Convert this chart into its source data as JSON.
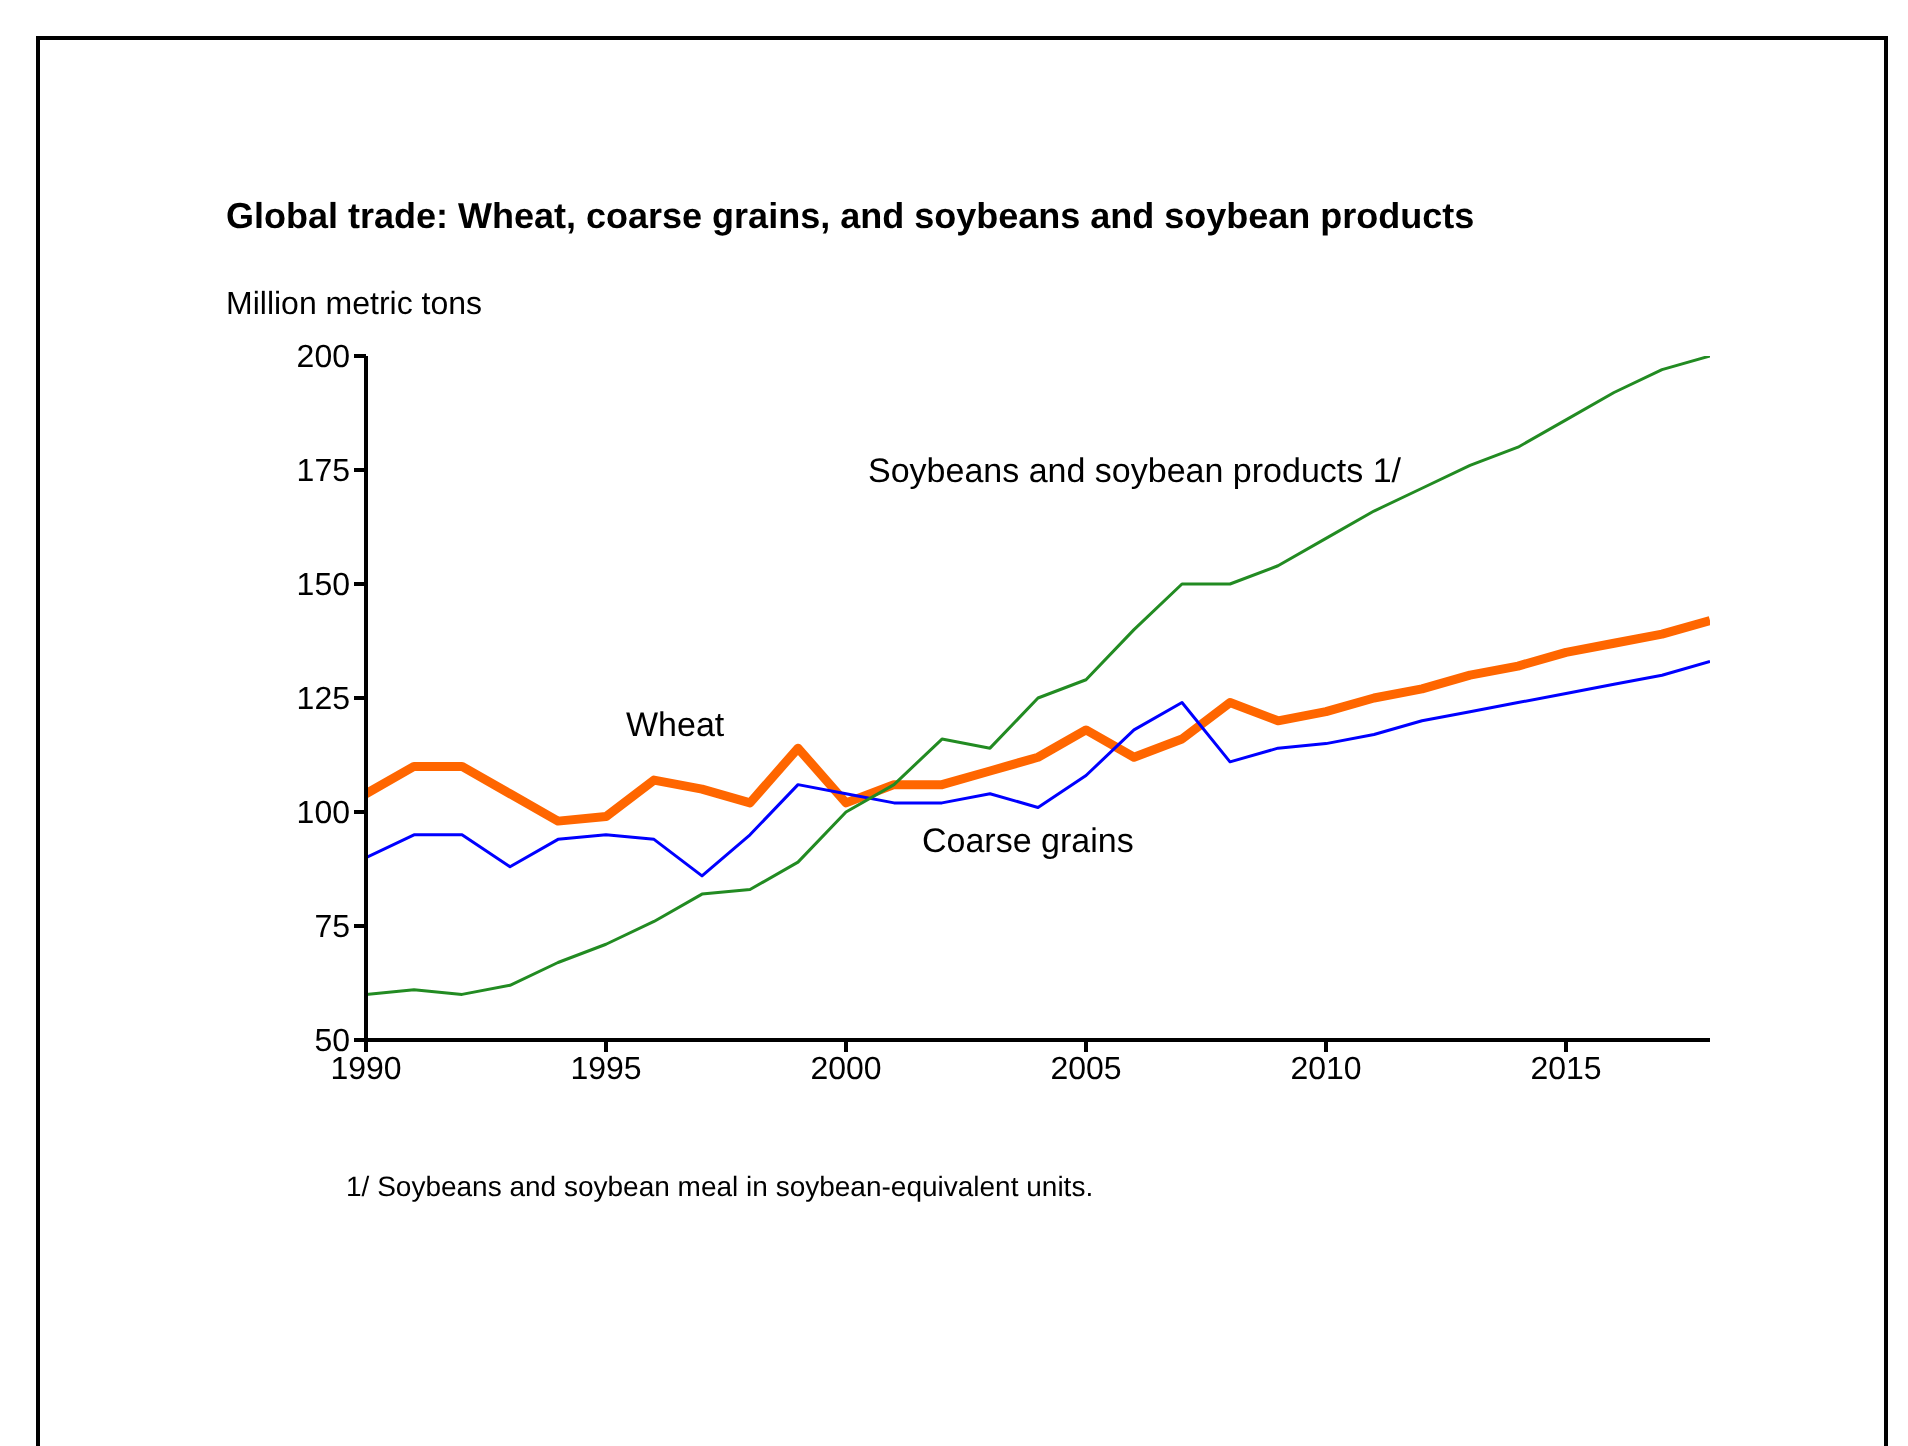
{
  "chart_data": {
    "type": "line",
    "title": "Global trade: Wheat, coarse grains, and soybeans and soybean products",
    "ylabel": "Million metric tons",
    "x": [
      1990,
      1991,
      1992,
      1993,
      1994,
      1995,
      1996,
      1997,
      1998,
      1999,
      2000,
      2001,
      2002,
      2003,
      2004,
      2005,
      2006,
      2007,
      2008,
      2009,
      2010,
      2011,
      2012,
      2013,
      2014,
      2015,
      2016,
      2017,
      2018
    ],
    "xlim": [
      1990,
      2018
    ],
    "xticks": [
      1990,
      1995,
      2000,
      2005,
      2010,
      2015
    ],
    "ylim": [
      50,
      200
    ],
    "yticks": [
      50,
      75,
      100,
      125,
      150,
      175,
      200
    ],
    "grid": false,
    "legend": false,
    "marker": "none",
    "line_style": "solid",
    "series": [
      {
        "name": "Wheat",
        "color": "#ff6600",
        "values": [
          104,
          110,
          110,
          104,
          98,
          99,
          107,
          105,
          102,
          114,
          102,
          106,
          106,
          109,
          112,
          118,
          112,
          116,
          124,
          120,
          122,
          125,
          127,
          130,
          132,
          135,
          137,
          139,
          142
        ]
      },
      {
        "name": "Coarse grains",
        "color": "#0000ff",
        "values": [
          90,
          95,
          95,
          88,
          94,
          95,
          94,
          86,
          95,
          106,
          104,
          102,
          102,
          104,
          101,
          108,
          118,
          124,
          111,
          114,
          115,
          117,
          120,
          122,
          124,
          126,
          128,
          130,
          133
        ]
      },
      {
        "name": "Soybeans and soybean products 1/",
        "color": "#228b22",
        "values": [
          60,
          61,
          60,
          62,
          67,
          71,
          76,
          82,
          83,
          89,
          100,
          106,
          116,
          114,
          125,
          129,
          140,
          150,
          150,
          154,
          160,
          166,
          171,
          176,
          180,
          186,
          192,
          197,
          200
        ]
      }
    ],
    "annotations": [
      "1/ Soybeans and soybean meal in soybean-equivalent units."
    ]
  }
}
